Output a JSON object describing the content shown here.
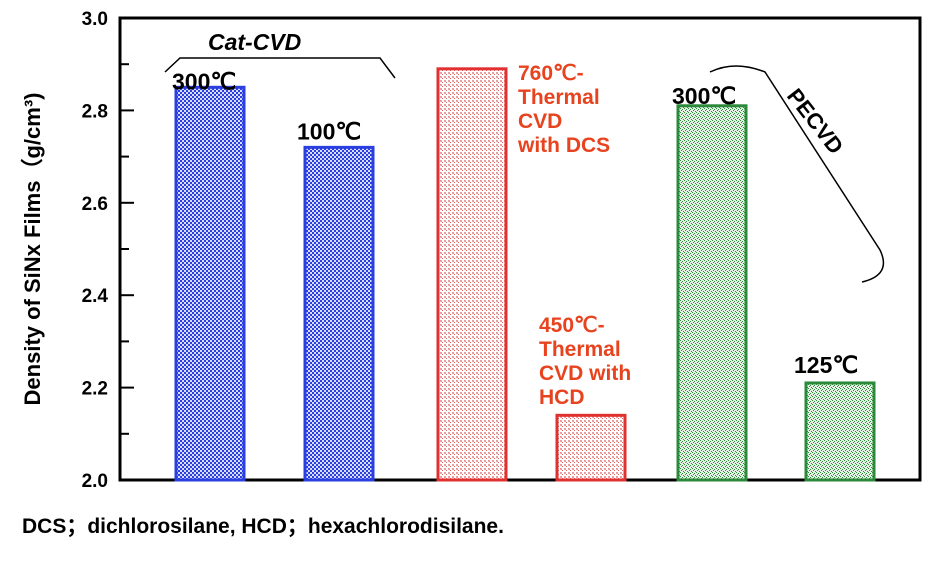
{
  "chart_data": {
    "type": "bar",
    "ylabel": "Density of SiNx Films（g/cm³)",
    "ylim": [
      2.0,
      3.0
    ],
    "yticks": [
      "2.0",
      "2.2",
      "2.4",
      "2.6",
      "2.8",
      "3.0"
    ],
    "bars": [
      {
        "lines": [
          "300℃"
        ],
        "value": 2.85,
        "color": "#2b3fe0",
        "group": "Cat-CVD"
      },
      {
        "lines": [
          "100℃"
        ],
        "value": 2.72,
        "color": "#2b3fe0",
        "group": "Cat-CVD"
      },
      {
        "lines": [
          "760℃-",
          "Thermal",
          "CVD",
          "with DCS"
        ],
        "value": 2.89,
        "color": "#e03030",
        "group": ""
      },
      {
        "lines": [
          "450℃-",
          "Thermal",
          "CVD with",
          "HCD"
        ],
        "value": 2.14,
        "color": "#e03030",
        "group": ""
      },
      {
        "lines": [
          "300℃"
        ],
        "value": 2.81,
        "color": "#2a8a3a",
        "group": "PECVD"
      },
      {
        "lines": [
          "125℃"
        ],
        "value": 2.21,
        "color": "#2a8a3a",
        "group": "PECVD"
      }
    ],
    "groups": [
      "Cat-CVD",
      "PECVD"
    ]
  },
  "footnote": "DCS；dichlorosilane, HCD；hexachlorodisilane."
}
